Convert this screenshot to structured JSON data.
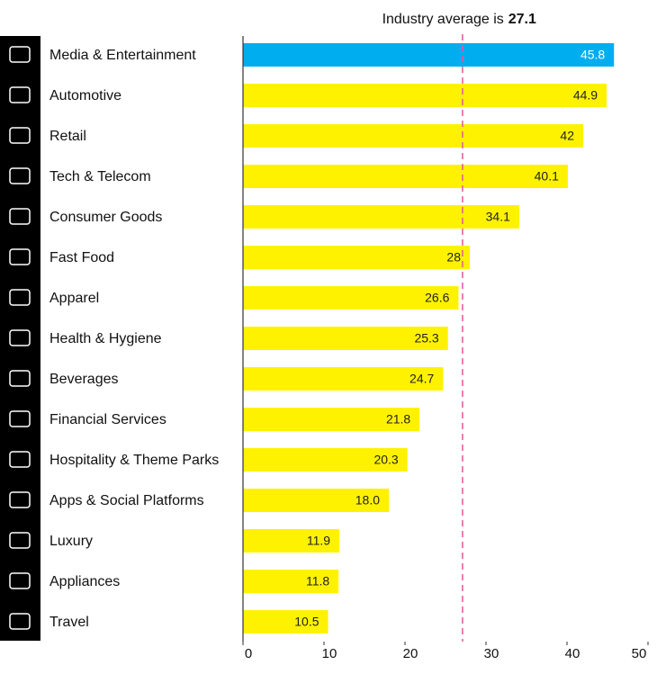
{
  "chart_data": {
    "type": "hbar",
    "categories": [
      "Media & Entertainment",
      "Automotive",
      "Retail",
      "Tech & Telecom",
      "Consumer Goods",
      "Fast Food",
      "Apparel",
      "Health & Hygiene",
      "Beverages",
      "Financial Services",
      "Hospitality & Theme Parks",
      "Apps & Social Platforms",
      "Luxury",
      "Appliances",
      "Travel"
    ],
    "values": [
      45.8,
      44.9,
      42,
      40.1,
      34.1,
      28,
      26.6,
      25.3,
      24.7,
      21.8,
      20.3,
      18.0,
      11.9,
      11.8,
      10.5
    ],
    "value_labels": [
      "45.8",
      "44.9",
      "42",
      "40.1",
      "34.1",
      "28",
      "26.6",
      "25.3",
      "24.7",
      "21.8",
      "20.3",
      "18.0",
      "11.9",
      "11.8",
      "10.5"
    ],
    "colors": [
      "#00aeef",
      "#fff200",
      "#fff200",
      "#fff200",
      "#fff200",
      "#fff200",
      "#fff200",
      "#fff200",
      "#fff200",
      "#fff200",
      "#fff200",
      "#fff200",
      "#fff200",
      "#fff200",
      "#fff200"
    ],
    "xlim": [
      0,
      50
    ],
    "xticks": [
      0,
      10,
      20,
      30,
      40,
      50
    ],
    "average": {
      "label": "Industry average is",
      "value": 27.1,
      "color": "#e8559a"
    }
  }
}
